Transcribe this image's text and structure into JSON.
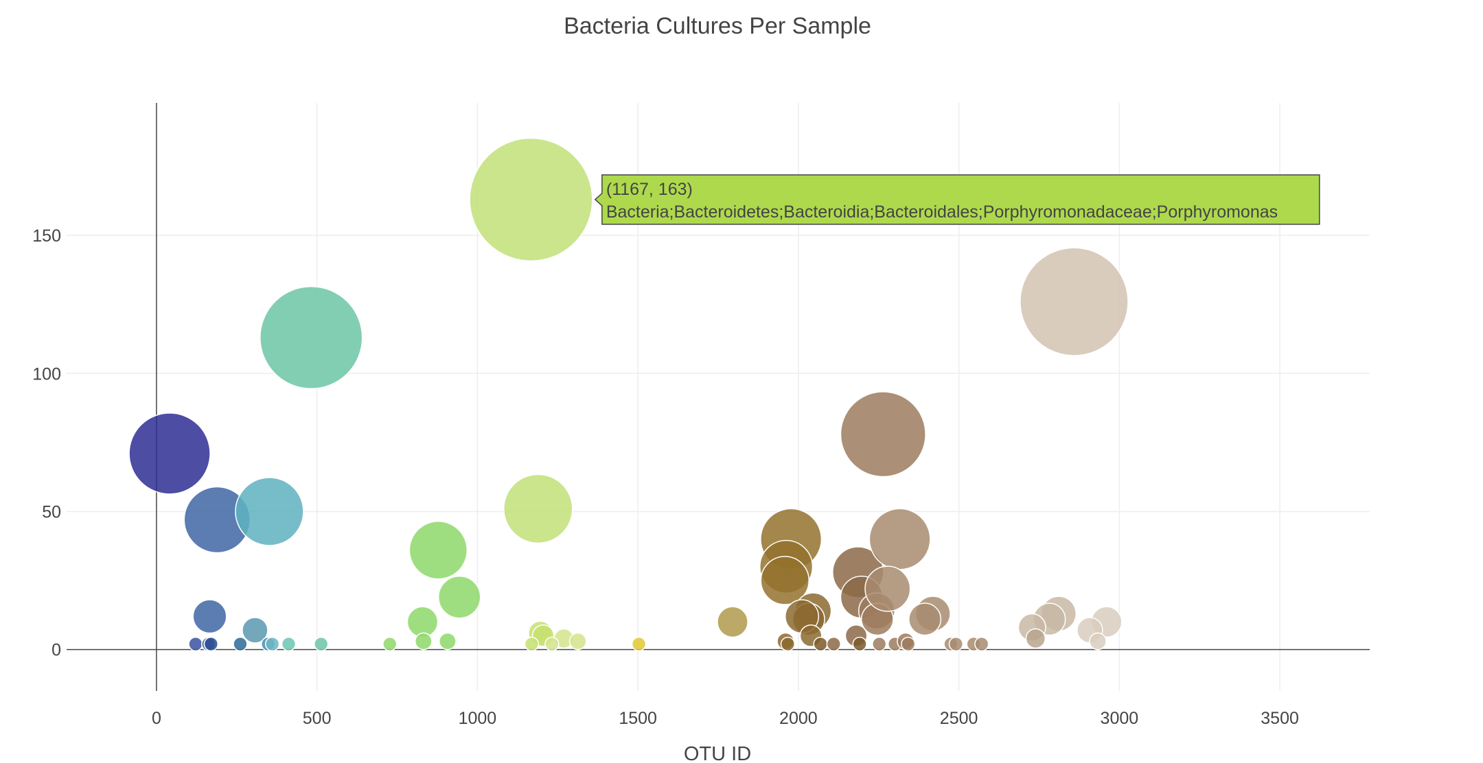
{
  "chart_data": {
    "type": "scatter",
    "title": "Bacteria Cultures Per Sample",
    "xlabel": "OTU ID",
    "ylabel": "",
    "xlim": [
      -280,
      3780
    ],
    "ylim": [
      -15,
      198
    ],
    "xticks": [
      0,
      500,
      1000,
      1500,
      2000,
      2500,
      3000,
      3500
    ],
    "yticks": [
      0,
      50,
      100,
      150
    ],
    "grid": true,
    "legend": "none",
    "series": [
      {
        "x": [
          41,
          189,
          352,
          482,
          1167,
          1189,
          878,
          944,
          829,
          1977,
          1962,
          1958,
          2046,
          2032,
          2011,
          2186,
          2197,
          2264,
          2244,
          2246,
          2316,
          2278,
          2419,
          2394,
          2859,
          2811,
          2782,
          2728,
          2739,
          2960,
          2908,
          2933,
          1795,
          166,
          307,
          1269,
          1196,
          1205,
          122,
          162,
          170,
          261,
          348,
          361,
          412,
          513,
          727,
          832,
          907,
          1169,
          1232,
          1313,
          1503,
          1960,
          1967,
          2039,
          2069,
          2110,
          2180,
          2191,
          2252,
          2301,
          2334,
          2342,
          2475,
          2491,
          2546,
          2571
        ],
        "y": [
          71,
          47,
          50,
          113,
          163,
          51,
          36,
          19,
          10,
          40,
          30,
          25,
          14,
          11,
          12,
          28,
          19,
          78,
          14,
          11,
          40,
          22,
          13,
          11,
          126,
          13,
          11,
          8,
          4,
          10,
          7,
          3,
          10,
          12,
          7,
          4,
          6,
          5,
          2,
          2,
          2,
          2,
          2,
          2,
          2,
          2,
          2,
          3,
          3,
          2,
          2,
          3,
          2,
          3,
          2,
          5,
          2,
          2,
          5,
          2,
          2,
          2,
          3,
          2,
          2,
          2,
          2,
          2
        ],
        "color": [
          "#2e2e94",
          "#3e66a4",
          "#5fb1c0",
          "#6cc6a4",
          "#c1e178",
          "#c1e178",
          "#8ed86a",
          "#8ed86a",
          "#8ed86a",
          "#94722e",
          "#94722e",
          "#94722e",
          "#8c6a30",
          "#8c6a30",
          "#8c6a30",
          "#8c6a48",
          "#8c6a48",
          "#9c7b5e",
          "#9c7b5e",
          "#9c7b5e",
          "#a88c70",
          "#a88c70",
          "#a88c70",
          "#a88c70",
          "#d2c3b2",
          "#c8b8a4",
          "#c8b8a4",
          "#c8b8a4",
          "#b9a48c",
          "#d8ccbe",
          "#d8ccbe",
          "#d8ccbe",
          "#b09a4c",
          "#3e66a4",
          "#5a98b0",
          "#d4e48c",
          "#c6e070",
          "#c6e070",
          "#3a52a0",
          "#3e66a4",
          "#2a4a90",
          "#2e6898",
          "#4890b0",
          "#6cb6c4",
          "#6cc6b0",
          "#6cc6a4",
          "#8ed86a",
          "#8ed86a",
          "#8ed86a",
          "#c6e070",
          "#d4e48c",
          "#d4e48c",
          "#e0c830",
          "#8c6a30",
          "#8c6a30",
          "#8c6a30",
          "#7a5a2a",
          "#8c6a48",
          "#8c6a48",
          "#7a5a2a",
          "#9c7b5e",
          "#9c7b5e",
          "#9c7b5e",
          "#9c7b5e",
          "#a88c70",
          "#a88c70",
          "#a88c70",
          "#a88c70"
        ]
      }
    ],
    "tooltip": {
      "point_index": 4,
      "line1": "(1167, 163)",
      "line2": "Bacteria;Bacteroidetes;Bacteroidia;Bacteroidales;Porphyromonadaceae;Porphyromonas",
      "background": "#aed94d",
      "border": "#444444"
    }
  }
}
